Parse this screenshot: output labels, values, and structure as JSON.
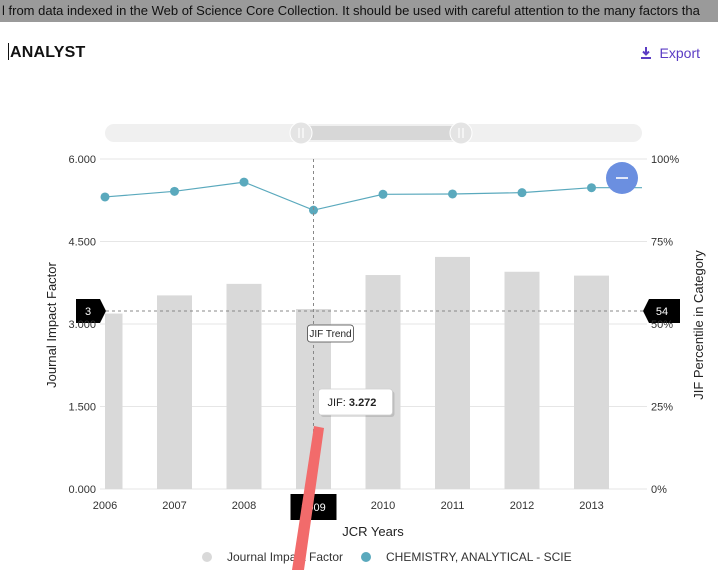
{
  "banner": {
    "text": "l from data indexed in the Web of Science Core Collection. It should be used with careful attention to the many factors tha"
  },
  "header": {
    "title": "ANALYST",
    "export_label": "Export",
    "export_icon": "download-icon"
  },
  "colors": {
    "bar": "#d9d9d9",
    "line": "#5aa9bd",
    "accent": "#5b3cc4",
    "slider_handle": "#6b8fe0",
    "annotation": "#f26b6b"
  },
  "chart_data": {
    "type": "bar+line",
    "categories": [
      "2006",
      "2007",
      "2008",
      "2009",
      "2010",
      "2011",
      "2012",
      "2013"
    ],
    "xlabel": "JCR Years",
    "ylabel": "Journal Impact Factor",
    "y2label": "JIF Percentile in Category",
    "ylim": [
      0,
      6
    ],
    "y2lim": [
      0,
      100
    ],
    "yticks": [
      "0.000",
      "1.500",
      "3.000",
      "4.500",
      "6.000"
    ],
    "y2ticks": [
      "0%",
      "25%",
      "50%",
      "75%",
      "100%"
    ],
    "grid": true,
    "legend_position": "bottom-center",
    "series": [
      {
        "name": "Journal Impact Factor",
        "type": "bar",
        "axis": "left",
        "values": [
          3.19,
          3.52,
          3.73,
          3.272,
          3.89,
          4.22,
          3.95,
          3.88
        ]
      },
      {
        "name": "CHEMISTRY, ANALYTICAL - SCIE",
        "type": "line",
        "axis": "right",
        "values": [
          88.5,
          90.2,
          93.0,
          84.5,
          89.3,
          89.4,
          89.8,
          91.3
        ]
      }
    ],
    "crosshair": {
      "category": "2009",
      "left_value_label": "3",
      "right_value_label": "54"
    },
    "tooltips": {
      "trend_label": "JIF Trend",
      "jif_prefix": "JIF: ",
      "jif_value": "3.272"
    }
  }
}
